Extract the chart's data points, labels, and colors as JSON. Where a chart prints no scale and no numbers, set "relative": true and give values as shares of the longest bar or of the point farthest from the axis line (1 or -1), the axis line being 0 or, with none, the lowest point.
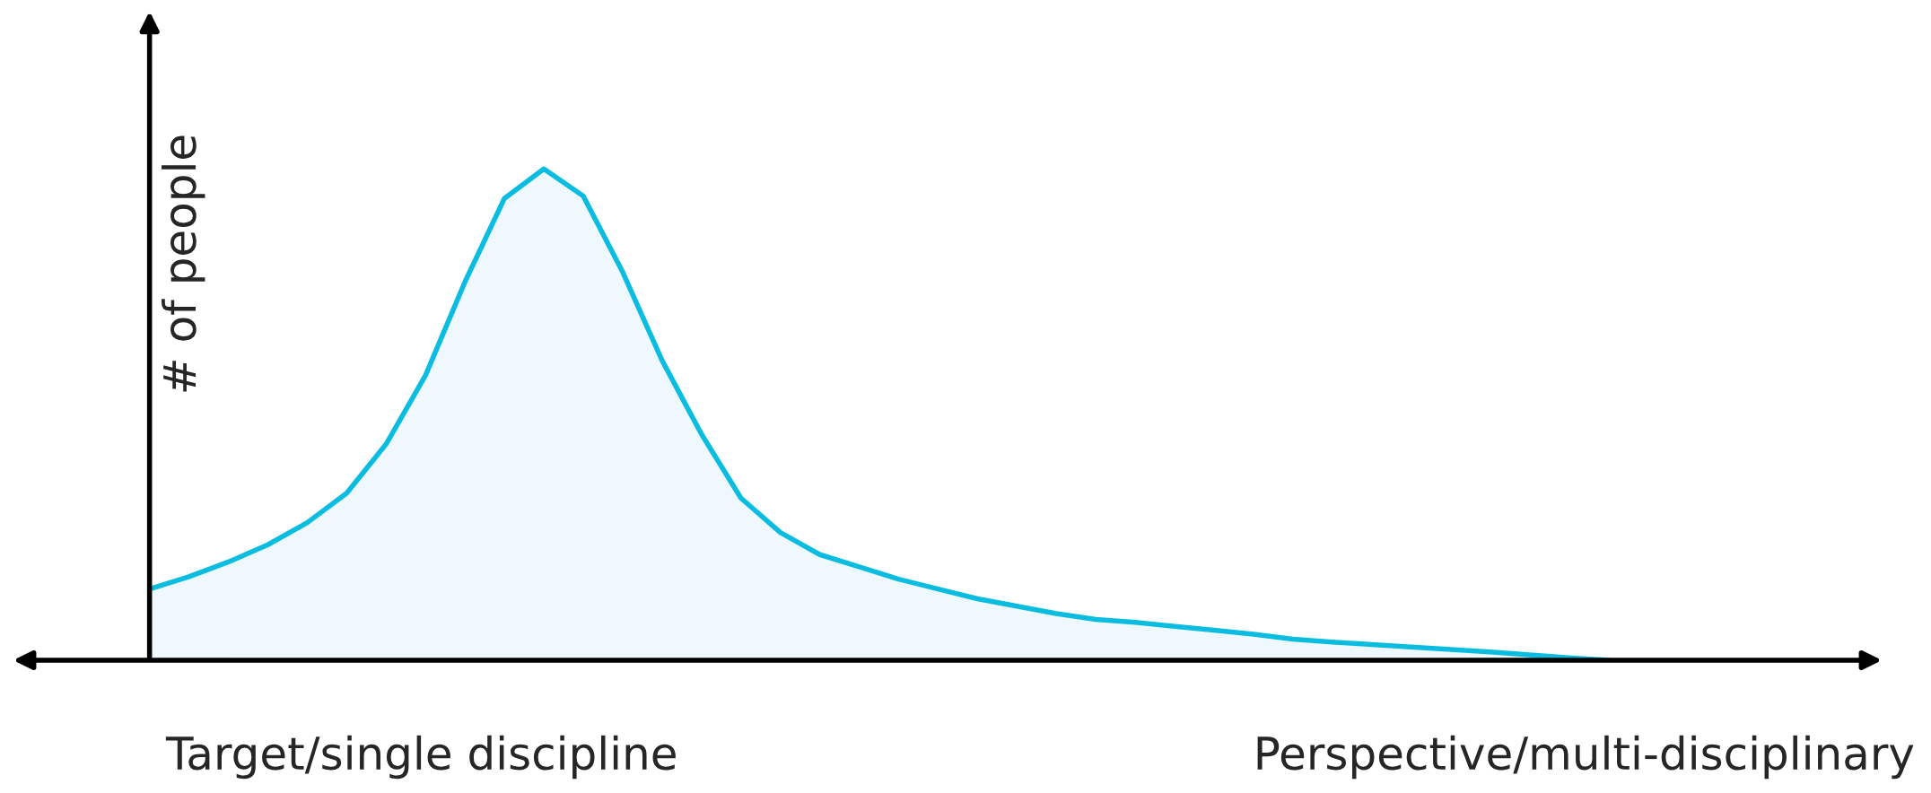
{
  "chart_data": {
    "type": "area",
    "relative": true,
    "ylabel": "# of people",
    "categories": [
      null,
      null,
      null,
      null,
      null,
      null,
      null,
      null,
      null,
      null,
      null,
      null,
      null,
      null,
      null,
      null,
      null,
      null,
      null,
      null,
      null,
      null,
      null,
      null,
      null,
      null,
      null,
      null,
      null,
      null,
      null,
      null,
      null,
      null,
      null,
      null,
      null,
      null,
      null,
      null,
      null,
      null,
      null,
      null,
      null
    ],
    "series": [
      {
        "color": "#0abde0",
        "values": [
          0.145,
          0.17,
          0.2,
          0.235,
          0.28,
          0.34,
          0.44,
          0.58,
          0.77,
          0.94,
          1,
          0.945,
          0.79,
          0.61,
          0.46,
          0.33,
          0.26,
          0.215,
          0.19,
          0.165,
          0.145,
          0.125,
          0.11,
          0.095,
          0.083,
          0.077,
          0.069,
          0.061,
          0.053,
          0.043,
          0.037,
          0.032,
          0.027,
          0.022,
          0.017,
          0.011,
          0.005,
          0,
          null,
          null,
          null,
          null,
          null,
          null,
          null
        ]
      }
    ],
    "annotations": [
      "Target/single discipline",
      "Perspective/multi-disciplinary"
    ]
  }
}
